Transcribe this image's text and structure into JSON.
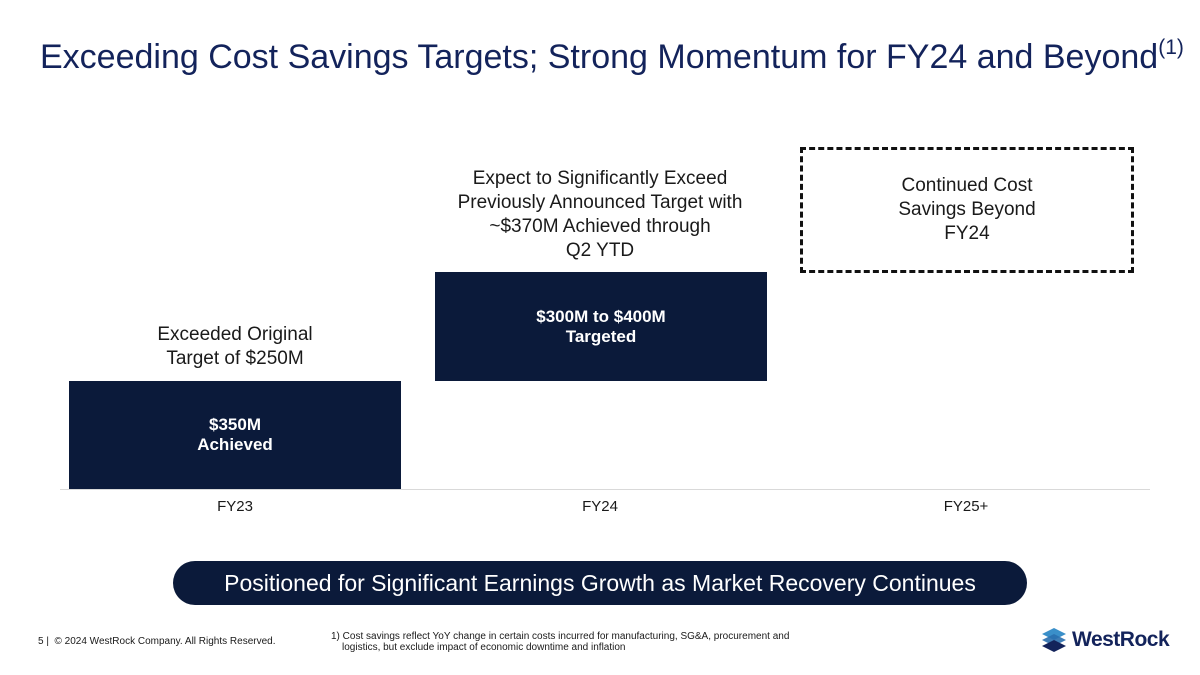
{
  "title": {
    "text": "Exceeding Cost Savings Targets; Strong Momentum for FY24 and Beyond",
    "superscript": "(1)"
  },
  "columns": [
    {
      "category": "FY23",
      "annotation": [
        "Exceeded Original",
        "Target of $250M"
      ],
      "box": [
        "$350M",
        "Achieved"
      ]
    },
    {
      "category": "FY24",
      "annotation": [
        "Expect to Significantly Exceed",
        "Previously Announced Target with",
        "~$370M Achieved through",
        "Q2 YTD"
      ],
      "box": [
        "$300M to $400M",
        "Targeted"
      ]
    },
    {
      "category": "FY25+",
      "box": [
        "Continued Cost",
        "Savings Beyond",
        "FY24"
      ]
    }
  ],
  "banner": "Positioned for Significant Earnings Growth as Market Recovery Continues",
  "footer": {
    "page": "5",
    "separator": "|",
    "copyright": "© 2024 WestRock Company. All Rights Reserved.",
    "footnote": [
      "1) Cost savings reflect YoY change in certain costs incurred for manufacturing, SG&A, procurement and",
      "logistics, but exclude impact of economic downtime and inflation"
    ],
    "logo": "WestRock"
  }
}
